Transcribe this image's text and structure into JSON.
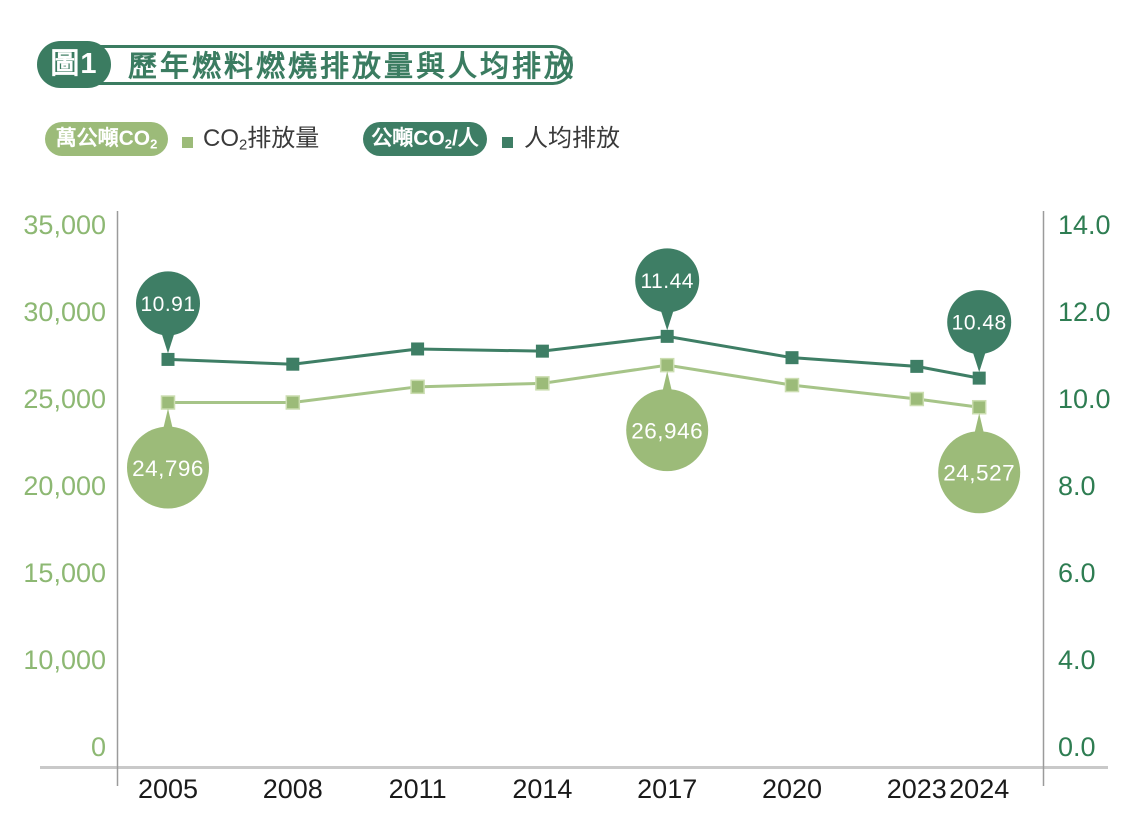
{
  "header": {
    "figure_badge": "圖1",
    "title": "歷年燃料燃燒排放量與人均排放"
  },
  "legend": {
    "unit_left": {
      "main": "萬公噸CO",
      "sub": "2"
    },
    "series_left": {
      "pre": "CO",
      "sub": "2",
      "rest": "排放量"
    },
    "unit_right": {
      "main": "公噸CO",
      "sub": "2",
      "rest": "/人"
    },
    "series_right": {
      "label": "人均排放"
    }
  },
  "chart_data": {
    "type": "line",
    "title": "歷年燃料燃燒排放量與人均排放",
    "grid": false,
    "legend_position": "top-left",
    "x_categories": [
      "2005",
      "2008",
      "2011",
      "2014",
      "2017",
      "2020",
      "2023",
      "2024"
    ],
    "x_index": [
      0,
      1,
      2,
      3,
      4,
      5,
      6,
      6.5
    ],
    "left_axis": {
      "unit": "萬公噸CO2",
      "ticks": [
        "35,000",
        "30,000",
        "25,000",
        "20,000",
        "15,000",
        "10,000",
        "0"
      ],
      "tick_values": [
        35000,
        30000,
        25000,
        20000,
        15000,
        10000,
        0
      ]
    },
    "right_axis": {
      "unit": "公噸CO2/人",
      "ticks": [
        "14.0",
        "12.0",
        "10.0",
        "8.0",
        "6.0",
        "4.0",
        "0.0"
      ],
      "tick_values": [
        14,
        12,
        10,
        8,
        6,
        4,
        0
      ]
    },
    "series": [
      {
        "name": "CO2排放量",
        "axis": "left",
        "line_color": "#A6C488",
        "marker_color": "#9CBB79",
        "marker_edge": "#CBDDB0",
        "values": [
          24796,
          24800,
          25700,
          25900,
          26946,
          25800,
          25000,
          24527
        ],
        "callout_position": "below",
        "callouts": [
          {
            "category": "2005",
            "text": "24,796"
          },
          {
            "category": "2017",
            "text": "26,946"
          },
          {
            "category": "2024",
            "text": "24,527"
          }
        ]
      },
      {
        "name": "人均排放",
        "axis": "right",
        "line_color": "#3E7E65",
        "marker_color": "#3E7E65",
        "values": [
          10.91,
          10.8,
          11.15,
          11.1,
          11.44,
          10.95,
          10.75,
          10.48
        ],
        "callout_position": "above",
        "callouts": [
          {
            "category": "2005",
            "text": "10.91"
          },
          {
            "category": "2017",
            "text": "11.44"
          },
          {
            "category": "2024",
            "text": "10.48"
          }
        ]
      }
    ],
    "colors": {
      "dark_green": "#3E7E65",
      "light_green": "#9CBB79",
      "title_green": "#3B7C61",
      "left_axis_text": "#8DB873",
      "right_axis_text": "#2E7D52",
      "x_axis_text": "#1A1A1A",
      "axis_line": "#9B9B9B",
      "baseline": "#C9C9C9",
      "callout_text": "#FFFFFF"
    }
  }
}
